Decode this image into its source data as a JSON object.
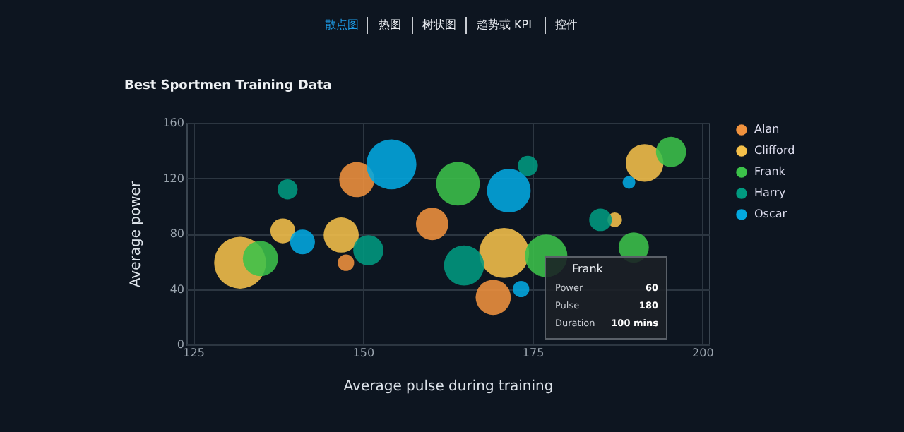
{
  "chart_data": {
    "type": "bubble",
    "title": "Best Sportmen Training Data",
    "xlabel": "Average pulse during training",
    "ylabel": "Average power",
    "annotations": [
      "散点图",
      "热图",
      "树状图",
      "趋势或 KPI",
      "控件",
      "Frank",
      "Power",
      "60",
      "Pulse",
      "180",
      "Duration",
      "100 mins"
    ],
    "xlim": [
      124,
      201
    ],
    "xticks": [
      125,
      150,
      175,
      200
    ],
    "ylim": [
      0,
      160
    ],
    "yticks": [
      0,
      40,
      80,
      120,
      160
    ],
    "grid": true,
    "legend": "right",
    "series": [
      {
        "name": "Alan",
        "color": "#f0923e",
        "x": [
          147.5,
          149.1,
          160.2,
          169.2
        ],
        "values": [
          59,
          119,
          87,
          34
        ],
        "sizes": [
          0.1,
          0.46,
          0.39,
          0.46
        ]
      },
      {
        "name": "Clifford",
        "color": "#f5c04a",
        "x": [
          131.9,
          138.2,
          146.8,
          170.8,
          187.1,
          191.5
        ],
        "values": [
          59,
          82,
          79,
          66,
          90,
          131
        ],
        "sizes": [
          1,
          0.23,
          0.46,
          0.93,
          0.08,
          0.53
        ]
      },
      {
        "name": "Frank",
        "color": "#3cc24a",
        "x": [
          134.9,
          164,
          177,
          189.9,
          195.4
        ],
        "values": [
          62,
          116,
          64,
          70,
          139
        ],
        "sizes": [
          0.46,
          0.71,
          0.67,
          0.34,
          0.34
        ]
      },
      {
        "name": "Harry",
        "color": "#019a80",
        "x": [
          138.9,
          150.8,
          164.9,
          174.3,
          185
        ],
        "values": [
          112,
          68,
          57,
          129,
          90
        ],
        "sizes": [
          0.15,
          0.34,
          0.6,
          0.15,
          0.19
        ]
      },
      {
        "name": "Oscar",
        "color": "#03a9e0",
        "x": [
          141.1,
          154.2,
          171.5,
          173.3,
          189.2
        ],
        "values": [
          74,
          130,
          111,
          40,
          117
        ],
        "sizes": [
          0.23,
          0.93,
          0.71,
          0.1,
          0.06
        ]
      }
    ]
  }
}
